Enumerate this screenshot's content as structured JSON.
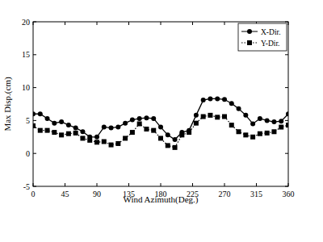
{
  "chart_data": {
    "type": "line",
    "x_label": "Wind Azimuth(Deg.)",
    "y_label": "Max Disp.(cm)",
    "x": [
      0,
      10,
      20,
      30,
      40,
      50,
      60,
      70,
      80,
      90,
      100,
      110,
      120,
      130,
      140,
      150,
      160,
      170,
      180,
      190,
      200,
      210,
      220,
      230,
      240,
      250,
      260,
      270,
      280,
      290,
      300,
      310,
      320,
      330,
      340,
      350,
      360
    ],
    "series": [
      {
        "name": "X-Dir.",
        "color": "#000000",
        "marker": "circle",
        "line_style": "solid",
        "values": [
          6.0,
          6.0,
          5.3,
          4.6,
          4.8,
          4.3,
          3.9,
          3.3,
          2.5,
          2.5,
          4.0,
          3.9,
          4.0,
          4.6,
          5.1,
          5.3,
          5.4,
          5.3,
          4.0,
          2.8,
          2.1,
          3.2,
          3.5,
          5.8,
          8.1,
          8.3,
          8.3,
          8.2,
          7.6,
          6.8,
          5.8,
          4.5,
          5.3,
          5.0,
          4.8,
          4.9,
          6.0
        ]
      },
      {
        "name": "Y-Dir.",
        "color": "#000000",
        "marker": "square",
        "line_style": "dotted",
        "values": [
          4.2,
          3.5,
          3.5,
          3.2,
          2.8,
          3.0,
          3.1,
          2.3,
          2.0,
          1.7,
          1.8,
          1.3,
          1.5,
          2.3,
          3.2,
          4.5,
          3.7,
          3.5,
          2.3,
          1.2,
          0.9,
          2.8,
          3.2,
          4.6,
          5.6,
          5.8,
          5.5,
          5.6,
          4.3,
          3.3,
          2.8,
          2.5,
          3.0,
          3.1,
          3.3,
          4.0,
          4.3
        ]
      }
    ],
    "xlim": [
      0,
      360
    ],
    "xticks": [
      0,
      45,
      90,
      135,
      180,
      225,
      270,
      315,
      360
    ],
    "ylim": [
      -5,
      20
    ],
    "yticks": [
      -5,
      0,
      5,
      10,
      15,
      20
    ],
    "grid": false,
    "legend": "upper right"
  }
}
